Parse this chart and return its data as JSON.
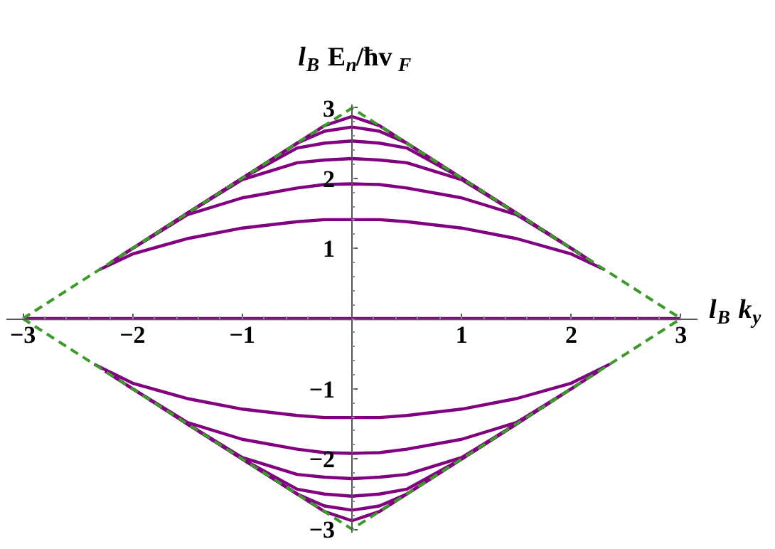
{
  "chart_data": {
    "type": "line",
    "xlabel": "l$_{B}$ k$_{y}$",
    "ylabel": "l$_{B}$ E$_{n}$/ħv$_{F}$",
    "x": [
      -2.3,
      -2,
      -1.5,
      -1,
      -0.5,
      -0.25,
      0,
      0.25,
      0.5,
      1,
      1.5,
      2,
      2.3
    ],
    "xlim": [
      -3.15,
      3.15
    ],
    "ylim": [
      -3.05,
      3.05
    ],
    "xticks": [
      {
        "value": -3,
        "label": "−3"
      },
      {
        "value": -2,
        "label": "−2"
      },
      {
        "value": -1,
        "label": "−1"
      },
      1,
      2,
      3
    ],
    "yticks": [
      {
        "value": -3,
        "label": "−3"
      },
      {
        "value": -2,
        "label": "−2"
      },
      {
        "value": -1,
        "label": "−1"
      },
      1,
      2,
      3
    ],
    "grid": false,
    "series": [
      {
        "color": "#800080",
        "x": [
          -3,
          3
        ],
        "values": [
          0,
          0
        ]
      },
      {
        "color": "#800080",
        "values": [
          0.7,
          0.92,
          1.14,
          1.29,
          1.38,
          1.41,
          1.41,
          1.41,
          1.38,
          1.29,
          1.14,
          0.92,
          0.7
        ]
      },
      {
        "color": "#800080",
        "x": [
          -2.2,
          -2,
          -1.5,
          -1,
          -0.5,
          -0.25,
          0,
          0.25,
          0.5,
          1,
          1.5,
          2,
          2.2
        ],
        "values": [
          0.8,
          1.0,
          1.48,
          1.72,
          1.86,
          1.91,
          1.92,
          1.91,
          1.86,
          1.72,
          1.48,
          1.0,
          0.8
        ]
      },
      {
        "color": "#800080",
        "x": [
          -2.1,
          -1.5,
          -1,
          -0.5,
          -0.25,
          0,
          0.25,
          0.5,
          1,
          1.5,
          2.1
        ],
        "values": [
          0.9,
          1.5,
          1.98,
          2.22,
          2.26,
          2.28,
          2.26,
          2.22,
          1.98,
          1.5,
          0.9
        ]
      },
      {
        "color": "#800080",
        "x": [
          -1.9,
          -1.5,
          -1,
          -0.5,
          -0.25,
          0,
          0.25,
          0.5,
          1,
          1.5,
          1.9
        ],
        "values": [
          1.1,
          1.5,
          2.0,
          2.43,
          2.5,
          2.53,
          2.5,
          2.43,
          2.0,
          1.5,
          1.1
        ]
      },
      {
        "color": "#800080",
        "x": [
          -1.8,
          -1.5,
          -1,
          -0.5,
          -0.25,
          0,
          0.25,
          0.5,
          1,
          1.5,
          1.8
        ],
        "values": [
          1.2,
          1.5,
          2.0,
          2.5,
          2.67,
          2.73,
          2.67,
          2.5,
          2.0,
          1.5,
          1.2
        ]
      },
      {
        "color": "#800080",
        "x": [
          -1.7,
          -1.5,
          -1,
          -0.5,
          -0.25,
          0,
          0.25,
          0.5,
          1,
          1.5,
          1.7
        ],
        "values": [
          1.3,
          1.5,
          2.0,
          2.5,
          2.75,
          2.88,
          2.75,
          2.5,
          2.0,
          1.5,
          1.3
        ]
      },
      {
        "color": "#800080",
        "x": [
          -2.35,
          -2,
          -1.5,
          -1,
          -0.5,
          -0.25,
          0,
          0.25,
          0.5,
          1,
          1.5,
          2,
          2.35
        ],
        "values": [
          -0.65,
          -0.92,
          -1.14,
          -1.29,
          -1.38,
          -1.41,
          -1.41,
          -1.41,
          -1.38,
          -1.29,
          -1.14,
          -0.92,
          -0.65
        ]
      },
      {
        "color": "#800080",
        "x": [
          -2.25,
          -2,
          -1.5,
          -1,
          -0.5,
          -0.25,
          0,
          0.25,
          0.5,
          1,
          1.5,
          2,
          2.25
        ],
        "values": [
          -0.75,
          -1.0,
          -1.48,
          -1.72,
          -1.86,
          -1.91,
          -1.92,
          -1.91,
          -1.86,
          -1.72,
          -1.48,
          -1.0,
          -0.75
        ]
      },
      {
        "color": "#800080",
        "x": [
          -2.05,
          -1.5,
          -1,
          -0.5,
          -0.25,
          0,
          0.25,
          0.5,
          1,
          1.5,
          2.05
        ],
        "values": [
          -0.95,
          -1.5,
          -1.98,
          -2.22,
          -2.26,
          -2.28,
          -2.26,
          -2.22,
          -1.98,
          -1.5,
          -0.95
        ]
      },
      {
        "color": "#800080",
        "x": [
          -1.85,
          -1.5,
          -1,
          -0.5,
          -0.25,
          0,
          0.25,
          0.5,
          1,
          1.5,
          1.85
        ],
        "values": [
          -1.15,
          -1.5,
          -2.0,
          -2.43,
          -2.5,
          -2.53,
          -2.5,
          -2.43,
          -2.0,
          -1.5,
          -1.15
        ]
      },
      {
        "color": "#800080",
        "x": [
          -1.75,
          -1.5,
          -1,
          -0.5,
          -0.25,
          0,
          0.25,
          0.5,
          1,
          1.5,
          1.75
        ],
        "values": [
          -1.25,
          -1.5,
          -2.0,
          -2.5,
          -2.67,
          -2.73,
          -2.67,
          -2.5,
          -2.0,
          -1.5,
          -1.25
        ]
      },
      {
        "color": "#800080",
        "x": [
          -1.65,
          -1.5,
          -1,
          -0.5,
          -0.25,
          0,
          0.25,
          0.5,
          1,
          1.5,
          1.65
        ],
        "values": [
          -1.35,
          -1.5,
          -2.0,
          -2.5,
          -2.75,
          -2.88,
          -2.75,
          -2.5,
          -2.0,
          -1.5,
          -1.35
        ]
      },
      {
        "color": "#3c9a28",
        "line_style": "dashed",
        "x": [
          -3,
          0,
          3
        ],
        "values": [
          0,
          3,
          0
        ]
      },
      {
        "color": "#3c9a28",
        "line_style": "dashed",
        "x": [
          -3,
          0,
          3
        ],
        "values": [
          0,
          -3,
          0
        ]
      }
    ]
  }
}
